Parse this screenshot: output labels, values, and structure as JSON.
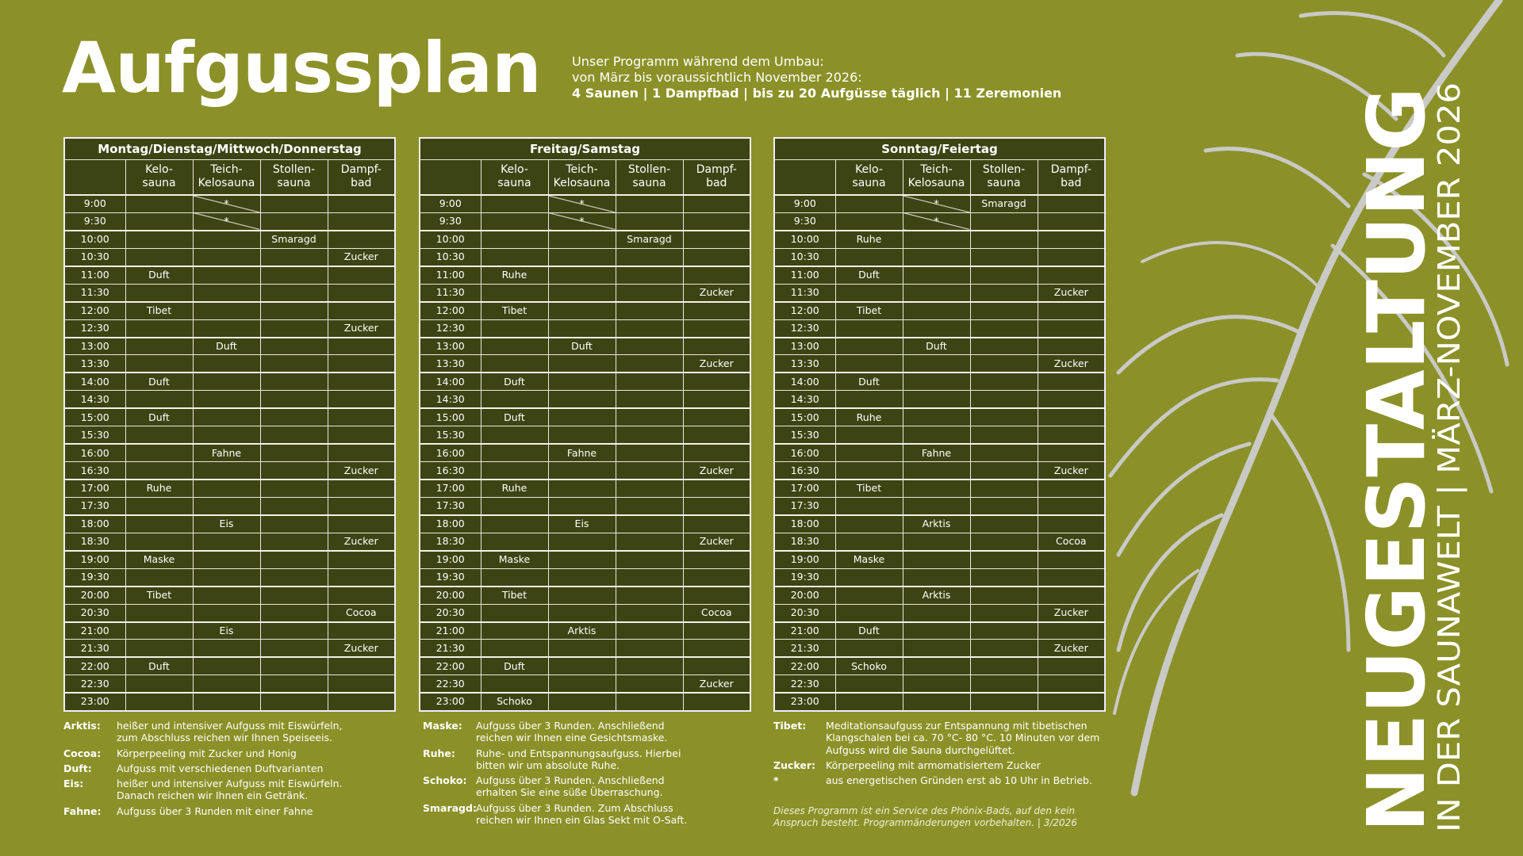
{
  "header": {
    "title": "Aufgussplan",
    "intro": [
      "Unser Programm während dem Umbau:",
      "von März bis voraussichtlich November 2026:",
      "4 Saunen | 1 Dampfbad | bis zu 20 Aufgüsse täglich | 11 Zeremonien"
    ]
  },
  "columns": [
    [
      "Kelo-",
      "sauna"
    ],
    [
      "Teich-",
      "Kelosauna"
    ],
    [
      "Stollen-",
      "sauna"
    ],
    [
      "Dampf-",
      "bad"
    ]
  ],
  "tables": [
    {
      "title": "Montag/Dienstag/Mittwoch/Donnerstag",
      "rows": [
        [
          "9:00",
          null,
          "*",
          null,
          null
        ],
        [
          "9:30",
          null,
          "*",
          null,
          null
        ],
        [
          "10:00",
          null,
          null,
          "Smaragd",
          null
        ],
        [
          "10:30",
          null,
          null,
          null,
          "Zucker"
        ],
        [
          "11:00",
          "Duft",
          null,
          null,
          null
        ],
        [
          "11:30",
          null,
          null,
          null,
          null
        ],
        [
          "12:00",
          "Tibet",
          null,
          null,
          null
        ],
        [
          "12:30",
          null,
          null,
          null,
          "Zucker"
        ],
        [
          "13:00",
          null,
          "Duft",
          null,
          null
        ],
        [
          "13:30",
          null,
          null,
          null,
          null
        ],
        [
          "14:00",
          "Duft",
          null,
          null,
          null
        ],
        [
          "14:30",
          null,
          null,
          null,
          null
        ],
        [
          "15:00",
          "Duft",
          null,
          null,
          null
        ],
        [
          "15:30",
          null,
          null,
          null,
          null
        ],
        [
          "16:00",
          null,
          "Fahne",
          null,
          null
        ],
        [
          "16:30",
          null,
          null,
          null,
          "Zucker"
        ],
        [
          "17:00",
          "Ruhe",
          null,
          null,
          null
        ],
        [
          "17:30",
          null,
          null,
          null,
          null
        ],
        [
          "18:00",
          null,
          "Eis",
          null,
          null
        ],
        [
          "18:30",
          null,
          null,
          null,
          "Zucker"
        ],
        [
          "19:00",
          "Maske",
          null,
          null,
          null
        ],
        [
          "19:30",
          null,
          null,
          null,
          null
        ],
        [
          "20:00",
          "Tibet",
          null,
          null,
          null
        ],
        [
          "20:30",
          null,
          null,
          null,
          "Cocoa"
        ],
        [
          "21:00",
          null,
          "Eis",
          null,
          null
        ],
        [
          "21:30",
          null,
          null,
          null,
          "Zucker"
        ],
        [
          "22:00",
          "Duft",
          null,
          null,
          null
        ],
        [
          "22:30",
          null,
          null,
          null,
          null
        ],
        [
          "23:00",
          null,
          null,
          null,
          null
        ]
      ]
    },
    {
      "title": "Freitag/Samstag",
      "rows": [
        [
          "9:00",
          null,
          "*",
          null,
          null
        ],
        [
          "9:30",
          null,
          "*",
          null,
          null
        ],
        [
          "10:00",
          null,
          null,
          "Smaragd",
          null
        ],
        [
          "10:30",
          null,
          null,
          null,
          null
        ],
        [
          "11:00",
          "Ruhe",
          null,
          null,
          null
        ],
        [
          "11:30",
          null,
          null,
          null,
          "Zucker"
        ],
        [
          "12:00",
          "Tibet",
          null,
          null,
          null
        ],
        [
          "12:30",
          null,
          null,
          null,
          null
        ],
        [
          "13:00",
          null,
          "Duft",
          null,
          null
        ],
        [
          "13:30",
          null,
          null,
          null,
          "Zucker"
        ],
        [
          "14:00",
          "Duft",
          null,
          null,
          null
        ],
        [
          "14:30",
          null,
          null,
          null,
          null
        ],
        [
          "15:00",
          "Duft",
          null,
          null,
          null
        ],
        [
          "15:30",
          null,
          null,
          null,
          null
        ],
        [
          "16:00",
          null,
          "Fahne",
          null,
          null
        ],
        [
          "16:30",
          null,
          null,
          null,
          "Zucker"
        ],
        [
          "17:00",
          "Ruhe",
          null,
          null,
          null
        ],
        [
          "17:30",
          null,
          null,
          null,
          null
        ],
        [
          "18:00",
          null,
          "Eis",
          null,
          null
        ],
        [
          "18:30",
          null,
          null,
          null,
          "Zucker"
        ],
        [
          "19:00",
          "Maske",
          null,
          null,
          null
        ],
        [
          "19:30",
          null,
          null,
          null,
          null
        ],
        [
          "20:00",
          "Tibet",
          null,
          null,
          null
        ],
        [
          "20:30",
          null,
          null,
          null,
          "Cocoa"
        ],
        [
          "21:00",
          null,
          "Arktis",
          null,
          null
        ],
        [
          "21:30",
          null,
          null,
          null,
          null
        ],
        [
          "22:00",
          "Duft",
          null,
          null,
          null
        ],
        [
          "22:30",
          null,
          null,
          null,
          "Zucker"
        ],
        [
          "23:00",
          "Schoko",
          null,
          null,
          null
        ]
      ]
    },
    {
      "title": "Sonntag/Feiertag",
      "rows": [
        [
          "9:00",
          null,
          "*",
          "Smaragd",
          null
        ],
        [
          "9:30",
          null,
          "*",
          null,
          null
        ],
        [
          "10:00",
          "Ruhe",
          null,
          null,
          null
        ],
        [
          "10:30",
          null,
          null,
          null,
          null
        ],
        [
          "11:00",
          "Duft",
          null,
          null,
          null
        ],
        [
          "11:30",
          null,
          null,
          null,
          "Zucker"
        ],
        [
          "12:00",
          "Tibet",
          null,
          null,
          null
        ],
        [
          "12:30",
          null,
          null,
          null,
          null
        ],
        [
          "13:00",
          null,
          "Duft",
          null,
          null
        ],
        [
          "13:30",
          null,
          null,
          null,
          "Zucker"
        ],
        [
          "14:00",
          "Duft",
          null,
          null,
          null
        ],
        [
          "14:30",
          null,
          null,
          null,
          null
        ],
        [
          "15:00",
          "Ruhe",
          null,
          null,
          null
        ],
        [
          "15:30",
          null,
          null,
          null,
          null
        ],
        [
          "16:00",
          null,
          "Fahne",
          null,
          null
        ],
        [
          "16:30",
          null,
          null,
          null,
          "Zucker"
        ],
        [
          "17:00",
          "Tibet",
          null,
          null,
          null
        ],
        [
          "17:30",
          null,
          null,
          null,
          null
        ],
        [
          "18:00",
          null,
          "Arktis",
          null,
          null
        ],
        [
          "18:30",
          null,
          null,
          null,
          "Cocoa"
        ],
        [
          "19:00",
          "Maske",
          null,
          null,
          null
        ],
        [
          "19:30",
          null,
          null,
          null,
          null
        ],
        [
          "20:00",
          null,
          "Arktis",
          null,
          null
        ],
        [
          "20:30",
          null,
          null,
          null,
          "Zucker"
        ],
        [
          "21:00",
          "Duft",
          null,
          null,
          null
        ],
        [
          "21:30",
          null,
          null,
          null,
          "Zucker"
        ],
        [
          "22:00",
          "Schoko",
          null,
          null,
          null
        ],
        [
          "22:30",
          null,
          null,
          null,
          null
        ],
        [
          "23:00",
          null,
          null,
          null,
          null
        ]
      ]
    }
  ],
  "legend": [
    [
      {
        "term": "Arktis:",
        "lines": [
          "heißer und intensiver Aufguss mit Eiswürfeln,",
          "zum Abschluss reichen wir Ihnen Speiseeis."
        ]
      },
      {
        "term": "Cocoa:",
        "lines": [
          "Körperpeeling mit Zucker und Honig"
        ]
      },
      {
        "term": "Duft:",
        "lines": [
          "Aufguss mit verschiedenen Duftvarianten"
        ]
      },
      {
        "term": "Eis:",
        "lines": [
          "heißer und intensiver Aufguss mit Eiswürfeln.",
          "Danach reichen wir Ihnen ein Getränk."
        ]
      },
      {
        "term": "Fahne:",
        "lines": [
          "Aufguss über 3 Runden mit einer Fahne"
        ]
      }
    ],
    [
      {
        "term": "Maske:",
        "lines": [
          "Aufguss über 3 Runden. Anschließend",
          "reichen wir Ihnen eine Gesichtsmaske."
        ]
      },
      {
        "term": "Ruhe:",
        "lines": [
          "Ruhe- und Entspannungsaufguss. Hierbei",
          "bitten wir um absolute Ruhe."
        ]
      },
      {
        "term": "Schoko:",
        "lines": [
          "Aufguss über 3 Runden. Anschließend",
          "erhalten Sie eine süße Überraschung."
        ]
      },
      {
        "term": "Smaragd:",
        "lines": [
          "Aufguss über 3 Runden. Zum Abschluss",
          "reichen wir Ihnen ein Glas Sekt mit O-Saft."
        ]
      }
    ],
    [
      {
        "term": "Tibet:",
        "lines": [
          "Meditationsaufguss zur Entspannung mit tibetischen",
          "Klangschalen bei ca. 70 °C- 80 °C. 10 Minuten vor dem",
          "Aufguss wird die Sauna  durchgelüftet."
        ]
      },
      {
        "term": "Zucker:",
        "lines": [
          "Körperpeeling mit armomatisiertem Zucker"
        ]
      },
      {
        "term": "*",
        "lines": [
          "aus energetischen Gründen erst ab 10 Uhr in Betrieb."
        ]
      }
    ]
  ],
  "footnote": [
    "Dieses Programm ist ein Service des Phönix-Bads, auf den kein",
    "Anspruch besteht. Programmänderungen vorbehalten. | 3/2026"
  ],
  "side": {
    "headline": "NEUGESTALTUNG",
    "subline": "IN DER SAUNAWELT | MÄRZ-NOVEMBER 2026"
  }
}
